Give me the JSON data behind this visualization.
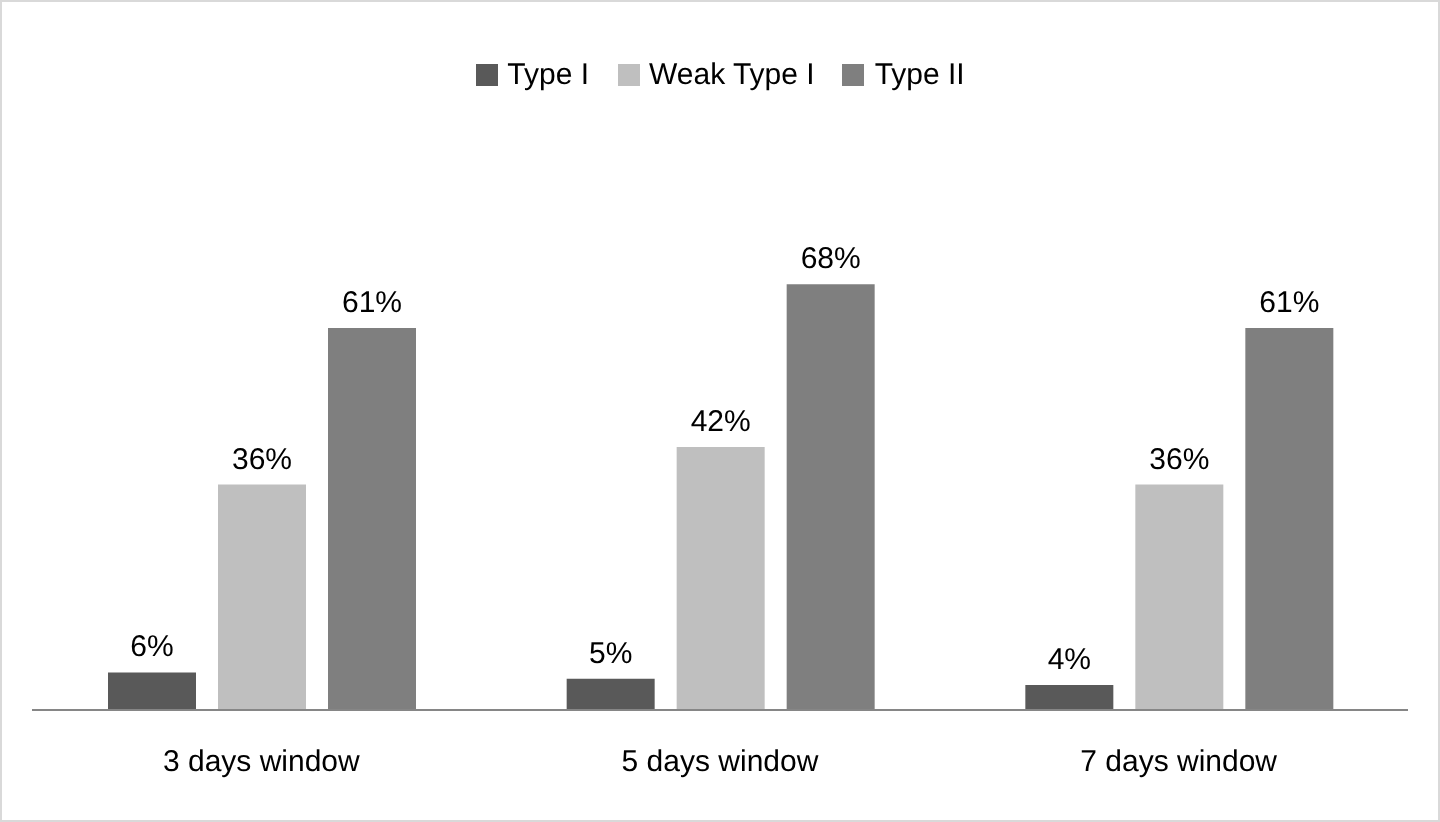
{
  "chart_data": {
    "type": "bar",
    "categories": [
      "3 days window",
      "5 days window",
      "7 days window"
    ],
    "series": [
      {
        "name": "Type I",
        "color": "#595959",
        "values": [
          6,
          5,
          4
        ],
        "value_labels": [
          "6%",
          "5%",
          "4%"
        ]
      },
      {
        "name": "Weak Type I",
        "color": "#bfbfbf",
        "values": [
          36,
          42,
          36
        ],
        "value_labels": [
          "36%",
          "42%",
          "36%"
        ]
      },
      {
        "name": "Type II",
        "color": "#7f7f7f",
        "values": [
          61,
          68,
          61
        ],
        "value_labels": [
          "61%",
          "68%",
          "61%"
        ]
      }
    ],
    "legend": "top",
    "tick_labels": "x"
  }
}
